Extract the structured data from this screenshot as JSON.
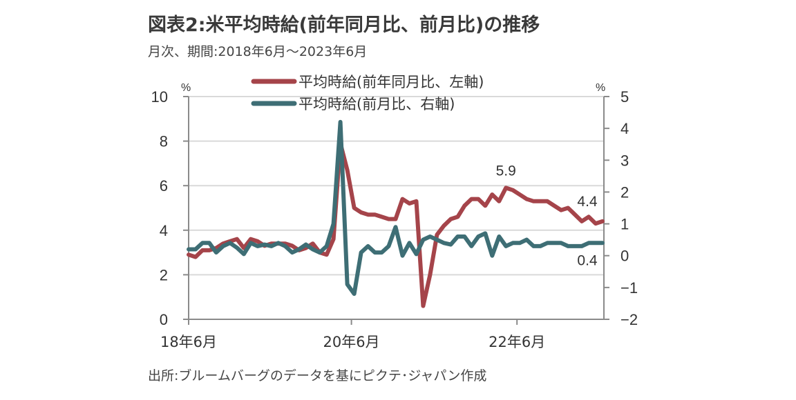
{
  "header": {
    "title": "図表2:米平均時給(前年同月比、前月比)の推移",
    "subtitle": "月次、期間:2018年6月～2023年6月"
  },
  "footer": {
    "source": "出所:ブルームバーグのデータを基にピクテ･ジャパン作成"
  },
  "chart_data": {
    "type": "line",
    "title": "図表2:米平均時給(前年同月比、前月比)の推移",
    "x_range": [
      "2018-06",
      "2023-06"
    ],
    "x_tick_labels": [
      "18年6月",
      "20年6月",
      "22年6月"
    ],
    "x_tick_months": [
      0,
      24,
      48
    ],
    "left_axis": {
      "unit": "%",
      "ylim": [
        0,
        10
      ],
      "ticks": [
        "0",
        "2",
        "4",
        "6",
        "8",
        "10"
      ]
    },
    "right_axis": {
      "unit": "%",
      "ylim": [
        -2,
        5
      ],
      "ticks": [
        "−2",
        "−1",
        "0",
        "1",
        "2",
        "3",
        "4",
        "5"
      ]
    },
    "grid": true,
    "legend_position": "top",
    "series": [
      {
        "name": "平均時給(前年同月比、左軸)",
        "axis": "left",
        "color": "#a5444a",
        "values": [
          2.9,
          2.8,
          3.1,
          3.1,
          3.2,
          3.4,
          3.5,
          3.6,
          3.2,
          3.6,
          3.5,
          3.3,
          3.4,
          3.4,
          3.4,
          3.3,
          3.1,
          3.2,
          3.4,
          3.0,
          2.9,
          3.6,
          7.9,
          6.7,
          5.0,
          4.8,
          4.7,
          4.7,
          4.6,
          4.5,
          4.5,
          5.4,
          5.2,
          5.3,
          0.6,
          2.0,
          3.8,
          4.2,
          4.5,
          4.6,
          5.1,
          5.4,
          5.4,
          5.1,
          5.6,
          5.3,
          5.9,
          5.8,
          5.6,
          5.4,
          5.3,
          5.3,
          5.3,
          5.1,
          4.9,
          5.0,
          4.7,
          4.4,
          4.6,
          4.3,
          4.4
        ]
      },
      {
        "name": "平均時給(前月比、右軸)",
        "axis": "right",
        "color": "#3e6e75",
        "values": [
          0.2,
          0.2,
          0.4,
          0.4,
          0.1,
          0.3,
          0.4,
          0.25,
          0.05,
          0.4,
          0.3,
          0.35,
          0.3,
          0.4,
          0.3,
          0.1,
          0.2,
          0.35,
          0.2,
          0.1,
          0.3,
          1.0,
          4.2,
          -0.9,
          -1.2,
          0.1,
          0.3,
          0.1,
          0.1,
          0.3,
          0.9,
          0.0,
          0.4,
          0.05,
          0.5,
          0.6,
          0.5,
          0.4,
          0.35,
          0.6,
          0.6,
          0.3,
          0.6,
          0.7,
          0.0,
          0.6,
          0.3,
          0.4,
          0.4,
          0.5,
          0.3,
          0.3,
          0.4,
          0.4,
          0.4,
          0.3,
          0.3,
          0.3,
          0.4,
          0.4,
          0.4
        ]
      }
    ],
    "annotations": [
      {
        "text": "5.9",
        "series": 0,
        "month": 46
      },
      {
        "text": "4.4",
        "series": 0,
        "month": 60
      },
      {
        "text": "0.4",
        "series": 1,
        "month": 60
      }
    ]
  }
}
